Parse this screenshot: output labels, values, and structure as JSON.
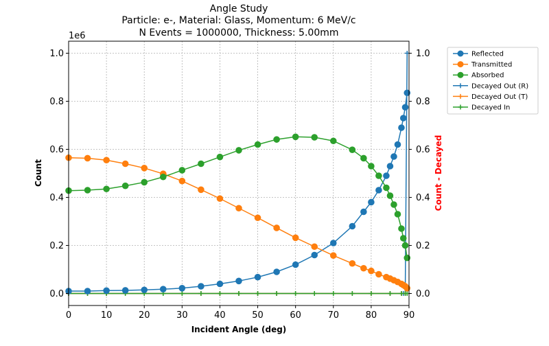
{
  "chart_data": {
    "type": "line",
    "title_lines": [
      "Angle Study",
      "Particle: e-, Material: Glass, Momentum: 6 MeV/c",
      "N Events = 1000000, Thickness: 5.00mm"
    ],
    "xlabel": "Incident Angle (deg)",
    "ylabel": "Count",
    "ylabel_right": "Count - Decayed",
    "y_offset_label": "1e6",
    "xlim": [
      0,
      90
    ],
    "ylim": [
      -0.05,
      1.05
    ],
    "ylim_right": [
      -0.05,
      1.05
    ],
    "x_ticks": [
      0,
      10,
      20,
      30,
      40,
      50,
      60,
      70,
      80,
      90
    ],
    "y_ticks": [
      0.0,
      0.2,
      0.4,
      0.6,
      0.8,
      1.0
    ],
    "y_right_ticks": [
      0.0,
      0.2,
      0.4,
      0.6,
      0.8,
      1.0
    ],
    "grid": true,
    "legend_position": "outside-right",
    "x": [
      0,
      5,
      10,
      15,
      20,
      25,
      30,
      35,
      40,
      45,
      50,
      55,
      60,
      65,
      70,
      75,
      78,
      80,
      82,
      84,
      85,
      86,
      87,
      88,
      88.5,
      89,
      89.5
    ],
    "series": [
      {
        "name": "Reflected",
        "color": "#1f77b4",
        "marker": "circle",
        "axis": "left",
        "values": [
          0.01,
          0.01,
          0.012,
          0.013,
          0.015,
          0.018,
          0.022,
          0.03,
          0.04,
          0.052,
          0.068,
          0.09,
          0.12,
          0.16,
          0.21,
          0.28,
          0.34,
          0.38,
          0.43,
          0.49,
          0.53,
          0.57,
          0.62,
          0.69,
          0.73,
          0.775,
          0.835
        ]
      },
      {
        "name": "Transmitted",
        "color": "#ff7f0e",
        "marker": "circle",
        "axis": "left",
        "values": [
          0.565,
          0.563,
          0.555,
          0.54,
          0.522,
          0.498,
          0.468,
          0.432,
          0.395,
          0.355,
          0.315,
          0.273,
          0.232,
          0.195,
          0.158,
          0.125,
          0.105,
          0.094,
          0.08,
          0.068,
          0.062,
          0.055,
          0.048,
          0.04,
          0.035,
          0.03,
          0.022
        ]
      },
      {
        "name": "Absorbed",
        "color": "#2ca02c",
        "marker": "circle",
        "axis": "left",
        "values": [
          0.428,
          0.43,
          0.435,
          0.448,
          0.463,
          0.485,
          0.513,
          0.54,
          0.568,
          0.596,
          0.62,
          0.641,
          0.652,
          0.65,
          0.635,
          0.598,
          0.563,
          0.53,
          0.49,
          0.44,
          0.407,
          0.37,
          0.33,
          0.27,
          0.23,
          0.2,
          0.148
        ]
      },
      {
        "name": "Decayed Out (R)",
        "color": "#1f77b4",
        "marker": "plus",
        "axis": "right",
        "x": [
          0,
          5,
          10,
          15,
          20,
          25,
          30,
          35,
          40,
          45,
          50,
          55,
          60,
          65,
          70,
          75,
          80,
          85,
          88,
          88.5,
          89,
          89.5
        ],
        "values": [
          0,
          0,
          0,
          0,
          0,
          0,
          0,
          0,
          0,
          0,
          0,
          0,
          0,
          0,
          0,
          0,
          0,
          0,
          0,
          0,
          0,
          1.0
        ]
      },
      {
        "name": "Decayed Out (T)",
        "color": "#ff7f0e",
        "marker": "plus",
        "axis": "right",
        "x": [
          0,
          5,
          10,
          15,
          20,
          25,
          30,
          35,
          40,
          45,
          50,
          55,
          60,
          65,
          70,
          75,
          80,
          85,
          88,
          89,
          89.5
        ],
        "values": [
          0,
          0,
          0,
          0,
          0,
          0,
          0,
          0,
          0,
          0,
          0,
          0,
          0,
          0,
          0,
          0,
          0,
          0,
          0,
          0,
          0
        ]
      },
      {
        "name": "Decayed In",
        "color": "#2ca02c",
        "marker": "plus",
        "axis": "right",
        "x": [
          0,
          5,
          10,
          15,
          20,
          25,
          30,
          35,
          40,
          45,
          50,
          55,
          60,
          65,
          70,
          75,
          80,
          85,
          88,
          89,
          89.5
        ],
        "values": [
          0,
          0,
          0,
          0,
          0,
          0,
          0,
          0,
          0,
          0,
          0,
          0,
          0,
          0,
          0,
          0,
          0,
          0,
          0,
          0,
          0
        ]
      }
    ]
  }
}
